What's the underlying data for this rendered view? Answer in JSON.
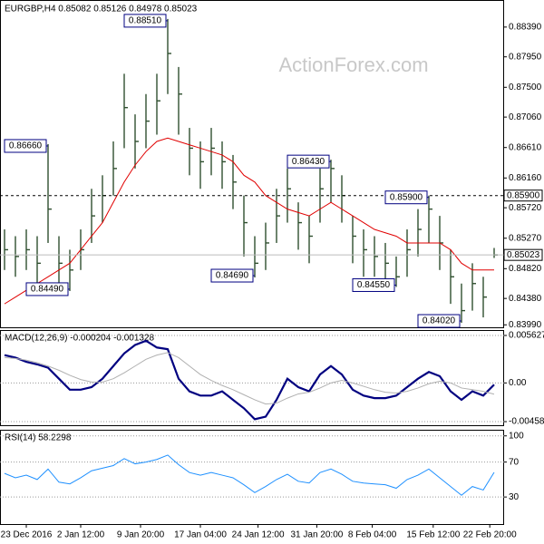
{
  "chart_data": [
    {
      "type": "ohlc",
      "title": "EURGBP,H4  0.85082 0.85126 0.84978 0.85023",
      "watermark": "ActionForex.com",
      "color": "#2f4f2f",
      "ylim": [
        0.8394,
        0.8879
      ],
      "yticks": [
        {
          "value": 0.8839,
          "label": "0.88390"
        },
        {
          "value": 0.8795,
          "label": "0.87950"
        },
        {
          "value": 0.875,
          "label": "0.87500"
        },
        {
          "value": 0.8706,
          "label": "0.87060"
        },
        {
          "value": 0.8661,
          "label": "0.86610"
        },
        {
          "value": 0.8616,
          "label": "0.86160"
        },
        {
          "value": 0.8572,
          "label": "0.85720"
        },
        {
          "value": 0.8527,
          "label": "0.85270"
        },
        {
          "value": 0.8482,
          "label": "0.84820"
        },
        {
          "value": 0.8438,
          "label": "0.84380"
        },
        {
          "value": 0.8399,
          "label": "0.83990"
        }
      ],
      "high": [
        0.854,
        0.853,
        0.854,
        0.853,
        0.8666,
        0.853,
        0.851,
        0.854,
        0.86,
        0.862,
        0.867,
        0.877,
        0.871,
        0.874,
        0.877,
        0.8851,
        0.878,
        0.869,
        0.867,
        0.869,
        0.867,
        0.865,
        0.859,
        0.853,
        0.855,
        0.86,
        0.863,
        0.858,
        0.856,
        0.863,
        0.8643,
        0.862,
        0.856,
        0.854,
        0.853,
        0.852,
        0.85,
        0.854,
        0.857,
        0.859,
        0.856,
        0.851,
        0.846,
        0.849,
        0.847,
        0.85126
      ],
      "low": [
        0.848,
        0.847,
        0.848,
        0.846,
        0.852,
        0.846,
        0.8449,
        0.848,
        0.852,
        0.855,
        0.859,
        0.866,
        0.863,
        0.866,
        0.868,
        0.874,
        0.868,
        0.862,
        0.86,
        0.862,
        0.86,
        0.857,
        0.85,
        0.8469,
        0.848,
        0.852,
        0.855,
        0.851,
        0.849,
        0.855,
        0.858,
        0.855,
        0.849,
        0.847,
        0.847,
        0.846,
        0.8455,
        0.847,
        0.85,
        0.852,
        0.848,
        0.843,
        0.8402,
        0.842,
        0.841,
        0.84978
      ],
      "close": [
        0.851,
        0.85,
        0.851,
        0.849,
        0.857,
        0.849,
        0.848,
        0.851,
        0.856,
        0.859,
        0.863,
        0.872,
        0.867,
        0.87,
        0.873,
        0.88,
        0.874,
        0.866,
        0.864,
        0.866,
        0.864,
        0.861,
        0.855,
        0.849,
        0.852,
        0.856,
        0.86,
        0.855,
        0.853,
        0.86,
        0.863,
        0.859,
        0.853,
        0.851,
        0.85,
        0.849,
        0.847,
        0.851,
        0.854,
        0.857,
        0.852,
        0.847,
        0.842,
        0.846,
        0.844,
        0.85023
      ],
      "series": [
        {
          "color": "#e00000",
          "values": [
            0.843,
            0.844,
            0.845,
            0.846,
            0.847,
            0.848,
            0.849,
            0.851,
            0.853,
            0.855,
            0.858,
            0.861,
            0.8635,
            0.8655,
            0.867,
            0.8675,
            0.867,
            0.8665,
            0.866,
            0.8655,
            0.865,
            0.864,
            0.862,
            0.861,
            0.859,
            0.858,
            0.857,
            0.8565,
            0.856,
            0.857,
            0.858,
            0.857,
            0.856,
            0.855,
            0.854,
            0.8535,
            0.853,
            0.852,
            0.852,
            0.852,
            0.852,
            0.851,
            0.849,
            0.848,
            0.848,
            0.848
          ]
        }
      ],
      "annotations": [
        {
          "label": "0.86660",
          "value": 0.8666,
          "index": 4
        },
        {
          "label": "0.84490",
          "value": 0.8449,
          "index": 6
        },
        {
          "label": "0.88510",
          "value": 0.8851,
          "index": 15
        },
        {
          "label": "0.84690",
          "value": 0.8469,
          "index": 23
        },
        {
          "label": "0.86430",
          "value": 0.8643,
          "index": 30
        },
        {
          "label": "0.84550",
          "value": 0.8455,
          "index": 36
        },
        {
          "label": "0.85900",
          "value": 0.859,
          "index": 39
        },
        {
          "label": "0.84020",
          "value": 0.8402,
          "index": 42
        }
      ],
      "hline": {
        "value": 0.859,
        "label": "0.85900"
      },
      "last": {
        "value": 0.85023,
        "label": "0.85023"
      }
    },
    {
      "type": "line",
      "title": "MACD(12,26,9) -0.000204 -0.001328",
      "ylim": [
        -0.00512,
        0.00627
      ],
      "yticks": [
        {
          "value": 0.005627,
          "label": "0.005627"
        },
        {
          "value": 0,
          "label": "0.00"
        },
        {
          "value": -0.004586,
          "label": "-0.004586"
        }
      ],
      "grid": true,
      "series": [
        {
          "color": "#000080",
          "width": 2.2,
          "values": [
            0.0033,
            0.003,
            0.0025,
            0.0022,
            0.0018,
            0.0005,
            -0.0008,
            -0.0008,
            -0.0005,
            0.0005,
            0.002,
            0.0035,
            0.0045,
            0.005,
            0.0042,
            0.004,
            0.0005,
            -0.001,
            -0.0015,
            -0.0015,
            -0.001,
            -0.002,
            -0.003,
            -0.0043,
            -0.004,
            -0.002,
            0.0005,
            -0.0005,
            -0.001,
            0.001,
            0.002,
            0.001,
            -0.0008,
            -0.0015,
            -0.0018,
            -0.0018,
            -0.0015,
            -0.0005,
            0.0005,
            0.0013,
            0.0008,
            -0.001,
            -0.002,
            -0.001,
            -0.0015,
            -0.000204
          ]
        },
        {
          "color": "#b0b0b0",
          "width": 1,
          "values": [
            0.003,
            0.0029,
            0.0027,
            0.0024,
            0.002,
            0.0015,
            0.0009,
            0.0004,
            0.0001,
            0.0001,
            0.0005,
            0.0012,
            0.002,
            0.0028,
            0.0033,
            0.0036,
            0.003,
            0.002,
            0.001,
            0.0003,
            -0.0003,
            -0.0008,
            -0.0014,
            -0.002,
            -0.0025,
            -0.0024,
            -0.0018,
            -0.0013,
            -0.0011,
            -0.0006,
            0.0,
            0.0003,
            0.0,
            -0.0004,
            -0.0008,
            -0.0011,
            -0.0012,
            -0.001,
            -0.0006,
            -0.0001,
            0.0002,
            0.0,
            -0.0006,
            -0.0008,
            -0.001,
            -0.001328
          ]
        }
      ]
    },
    {
      "type": "line",
      "title": "RSI(14) 58.2298",
      "ylim": [
        -1,
        107
      ],
      "yticks": [
        100,
        70,
        30
      ],
      "grid": true,
      "series": [
        {
          "color": "#1e90ff",
          "width": 1,
          "values": [
            57,
            52,
            55,
            50,
            62,
            47,
            45,
            52,
            60,
            63,
            66,
            74,
            68,
            70,
            73,
            78,
            67,
            58,
            55,
            58,
            55,
            52,
            44,
            35,
            42,
            50,
            56,
            48,
            46,
            58,
            62,
            56,
            48,
            46,
            45,
            44,
            40,
            50,
            55,
            62,
            52,
            42,
            32,
            42,
            38,
            58.2298
          ]
        }
      ],
      "xticks": [
        {
          "value": 2,
          "label": "23 Dec 2016"
        },
        {
          "value": 7,
          "label": "2 Jan 12:00"
        },
        {
          "value": 12.5,
          "label": "9 Jan 20:00"
        },
        {
          "value": 18,
          "label": "17 Jan 04:00"
        },
        {
          "value": 23.3,
          "label": "24 Jan 12:00"
        },
        {
          "value": 28.7,
          "label": "31 Jan 20:00"
        },
        {
          "value": 33.8,
          "label": "8 Feb 04:00"
        },
        {
          "value": 39.4,
          "label": "15 Feb 12:00"
        },
        {
          "value": 44.6,
          "label": "22 Feb 20:00"
        }
      ]
    }
  ]
}
